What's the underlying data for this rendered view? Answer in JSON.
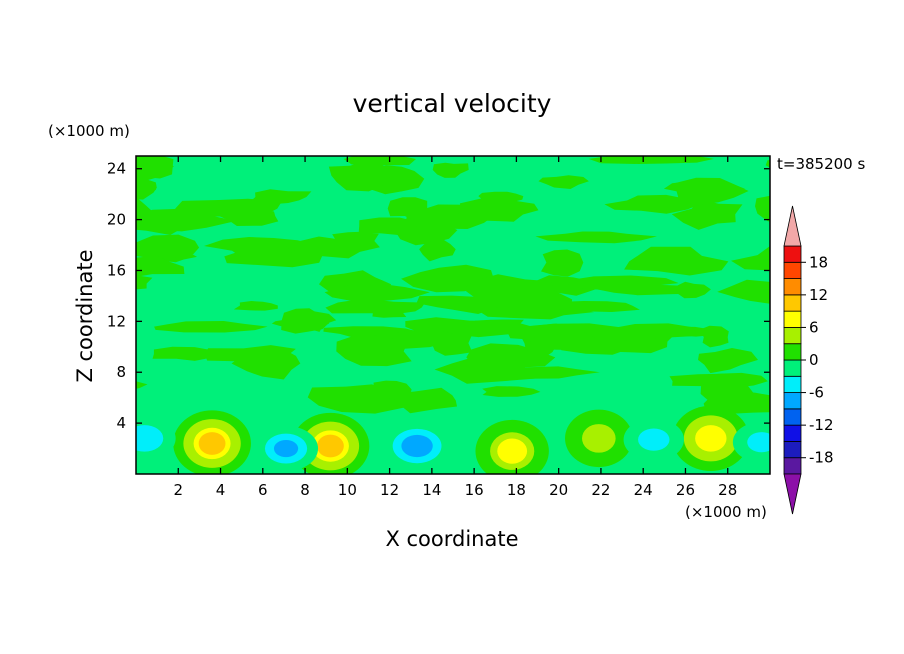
{
  "chart_data": {
    "type": "heatmap",
    "title": "vertical velocity",
    "xlabel": "X coordinate",
    "ylabel": "Z coordinate",
    "x_unit_label": "(×1000 m)",
    "y_unit_label": "(×1000 m)",
    "time_label": "t=385200 s",
    "xlim": [
      0,
      30
    ],
    "ylim": [
      0,
      25
    ],
    "x_ticks": [
      2,
      4,
      6,
      8,
      10,
      12,
      14,
      16,
      18,
      20,
      22,
      24,
      26,
      28
    ],
    "x_tick_labels": [
      "2",
      "4",
      "6",
      "8",
      "10",
      "12",
      "14",
      "16",
      "18",
      "20",
      "22",
      "24",
      "26",
      "28"
    ],
    "y_ticks": [
      4,
      8,
      12,
      16,
      20,
      24
    ],
    "y_tick_labels": [
      "4",
      "8",
      "12",
      "16",
      "20",
      "24"
    ],
    "background_color": "#00f07a",
    "colorbar": {
      "levels": [
        -21,
        -18,
        -15,
        -12,
        -9,
        -6,
        -3,
        0,
        3,
        6,
        9,
        12,
        15,
        18,
        21
      ],
      "tick_values": [
        -18,
        -12,
        -6,
        0,
        6,
        12,
        18
      ],
      "tick_labels": [
        "-18",
        "-12",
        "-6",
        "0",
        "6",
        "12",
        "18"
      ],
      "colors": [
        "#5a18a0",
        "#1c1cbe",
        "#1010e6",
        "#0062f0",
        "#00a8ff",
        "#00eefa",
        "#00f07a",
        "#20e000",
        "#a8f000",
        "#ffff00",
        "#ffc800",
        "#ff8c00",
        "#ff4600",
        "#ee1010"
      ],
      "under_color": "#8c10a8",
      "over_color": "#f2a8a8"
    },
    "features": [
      {
        "type": "updraft",
        "x": 3.6,
        "z": 2.4,
        "max": 9
      },
      {
        "type": "updraft",
        "x": 9.2,
        "z": 2.2,
        "max": 9
      },
      {
        "type": "updraft",
        "x": 17.8,
        "z": 1.8,
        "max": 6
      },
      {
        "type": "updraft",
        "x": 21.9,
        "z": 2.8,
        "max": 4
      },
      {
        "type": "updraft",
        "x": 27.2,
        "z": 2.8,
        "max": 8
      },
      {
        "type": "downdraft",
        "x": 0.4,
        "z": 2.8,
        "min": -6
      },
      {
        "type": "downdraft",
        "x": 7.1,
        "z": 2.0,
        "min": -7
      },
      {
        "type": "downdraft",
        "x": 13.3,
        "z": 2.2,
        "min": -9
      },
      {
        "type": "downdraft",
        "x": 24.5,
        "z": 2.7,
        "min": -5
      },
      {
        "type": "downdraft",
        "x": 29.6,
        "z": 2.5,
        "min": -4
      }
    ]
  }
}
